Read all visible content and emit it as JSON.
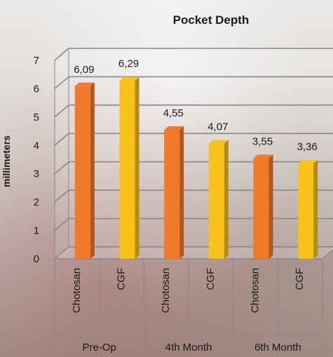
{
  "chart_data": {
    "type": "bar",
    "title": "Pocket Depth",
    "ylabel": "millimeters",
    "xlabel": "",
    "ylim": [
      0,
      7
    ],
    "yticks": [
      "0",
      "1",
      "2",
      "3",
      "4",
      "5",
      "6",
      "7"
    ],
    "groups": [
      "Pre-Op",
      "4th Month",
      "6th Month"
    ],
    "categories": [
      "Chotosan",
      "CGF",
      "Chotosan",
      "CGF",
      "Chotosan",
      "CGF"
    ],
    "values": [
      6.09,
      6.29,
      4.55,
      4.07,
      3.55,
      3.36
    ],
    "data_labels": [
      "6,09",
      "6,29",
      "4,55",
      "4,07",
      "3,55",
      "3,36"
    ],
    "grid": true,
    "legend": "none",
    "colors": {
      "Chotosan": "#f07a2a",
      "CGF": "#f8c21a",
      "gridline": "#888888"
    }
  }
}
